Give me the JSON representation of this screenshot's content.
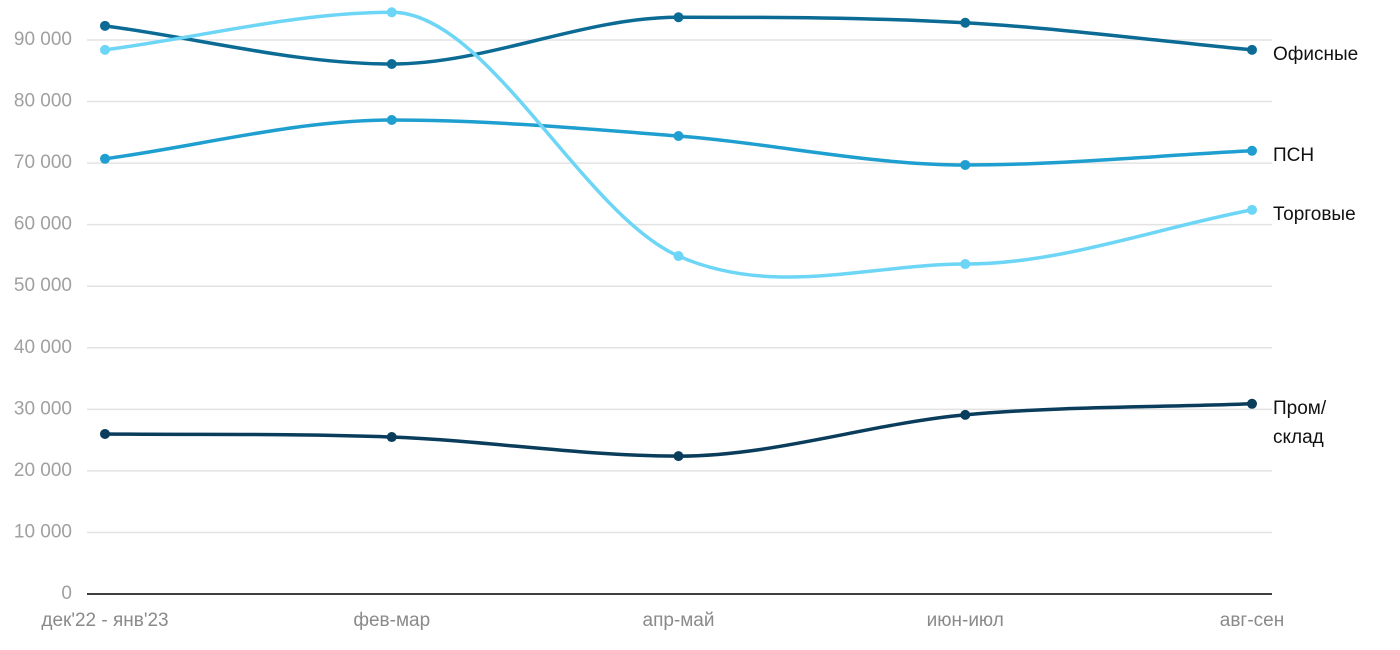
{
  "chart_data": {
    "type": "line",
    "categories": [
      "дек'22 - янв'23",
      "фев-мар",
      "апр-май",
      "июн-июл",
      "авг-сен"
    ],
    "series": [
      {
        "name": "Офисные",
        "color": "#0b6b94",
        "values": [
          92300,
          86100,
          93700,
          92800,
          88400
        ]
      },
      {
        "name": "ПСН",
        "color": "#1e9fcf",
        "values": [
          70700,
          77000,
          74400,
          69700,
          72000
        ]
      },
      {
        "name": "Торговые",
        "color": "#6dd5f5",
        "values": [
          88400,
          94500,
          54900,
          53600,
          62400
        ]
      },
      {
        "name": "Пром/\nсклад",
        "color": "#0a3d5c",
        "values": [
          26000,
          25500,
          22400,
          29100,
          30900
        ]
      }
    ],
    "ylim": [
      0,
      90000
    ],
    "yticks": [
      0,
      {
        "value": 10000,
        "label": "10 000"
      },
      {
        "value": 20000,
        "label": "20 000"
      },
      {
        "value": 30000,
        "label": "30 000"
      },
      {
        "value": 40000,
        "label": "40 000"
      },
      {
        "value": 50000,
        "label": "50 000"
      },
      {
        "value": 60000,
        "label": "60 000"
      },
      {
        "value": 70000,
        "label": "70 000"
      },
      {
        "value": 80000,
        "label": "80 000"
      },
      {
        "value": 90000,
        "label": "90 000"
      }
    ],
    "grid": true
  }
}
